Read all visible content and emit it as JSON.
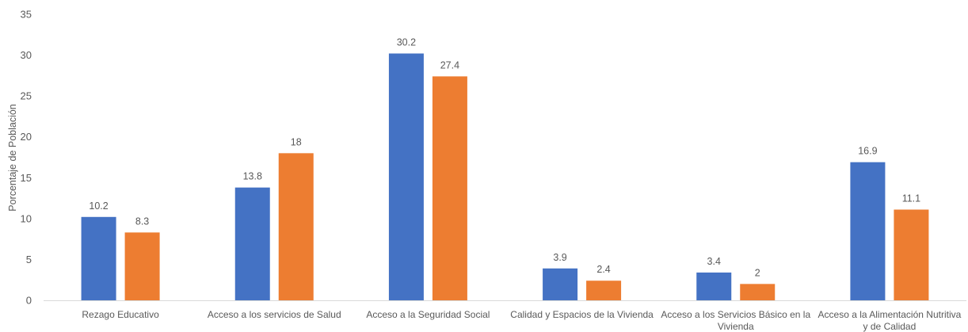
{
  "chart_data": {
    "type": "bar",
    "title": "",
    "xlabel": "",
    "ylabel": "Porcentaje de Población",
    "ylim": [
      0,
      35
    ],
    "yticks": [
      0,
      5,
      10,
      15,
      20,
      25,
      30,
      35
    ],
    "grid": false,
    "legend": "none",
    "categories": [
      [
        "Rezago Educativo"
      ],
      [
        "Acceso a los servicios de Salud"
      ],
      [
        "Acceso a la Seguridad Social"
      ],
      [
        "Calidad y Espacios de la Vivienda"
      ],
      [
        "Acceso a los Servicios Básico en la",
        "Vivienda"
      ],
      [
        "Acceso a la Alimentación Nutritiva",
        "y de Calidad"
      ]
    ],
    "series": [
      {
        "color": "#4472C4",
        "values": [
          10.2,
          13.8,
          30.2,
          3.9,
          3.4,
          16.9
        ]
      },
      {
        "color": "#ED7D31",
        "values": [
          8.3,
          18,
          27.4,
          2.4,
          2,
          11.1
        ]
      }
    ]
  }
}
